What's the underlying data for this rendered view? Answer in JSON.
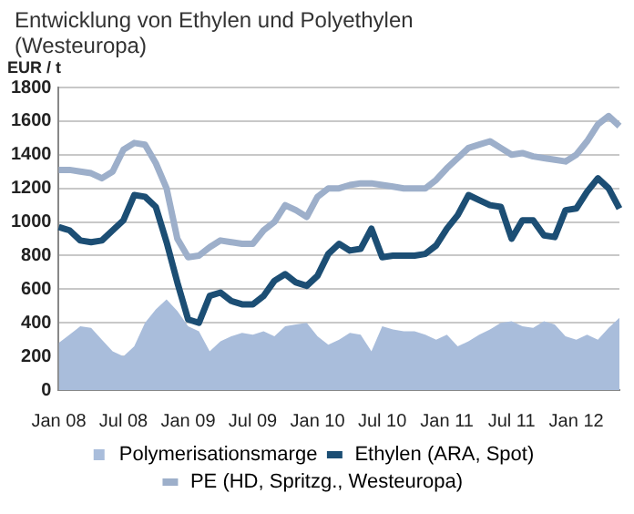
{
  "chart_data": {
    "type": "line",
    "title": "Entwicklung von Ethylen und Polyethylen (Westeuropa)",
    "ylabel": "EUR / t",
    "categories": [
      "Jan 08",
      null,
      null,
      null,
      null,
      null,
      "Jul 08",
      null,
      null,
      null,
      null,
      null,
      "Jan 09",
      null,
      null,
      null,
      null,
      null,
      "Jul 09",
      null,
      null,
      null,
      null,
      null,
      "Jan 10",
      null,
      null,
      null,
      null,
      null,
      "Jul 10",
      null,
      null,
      null,
      null,
      null,
      "Jan 11",
      null,
      null,
      null,
      null,
      null,
      "Jul 11",
      null,
      null,
      null,
      null,
      null,
      "Jan 12",
      null,
      null,
      null,
      null
    ],
    "series": [
      {
        "name": "Polymerisationsmarge",
        "type": "area",
        "color": "#a9bddb",
        "values": [
          280,
          330,
          380,
          370,
          300,
          230,
          200,
          260,
          400,
          480,
          540,
          470,
          380,
          350,
          230,
          290,
          320,
          340,
          330,
          350,
          320,
          380,
          390,
          400,
          320,
          270,
          300,
          340,
          330,
          230,
          380,
          360,
          350,
          350,
          330,
          300,
          330,
          260,
          290,
          330,
          360,
          400,
          410,
          380,
          370,
          410,
          390,
          320,
          300,
          330,
          300,
          370,
          430
        ]
      },
      {
        "name": "Ethylen (ARA, Spot)",
        "color": "#1c4e74",
        "values": [
          970,
          950,
          890,
          880,
          890,
          950,
          1010,
          1160,
          1150,
          1090,
          880,
          640,
          420,
          400,
          560,
          580,
          530,
          510,
          510,
          560,
          650,
          690,
          640,
          620,
          680,
          810,
          870,
          830,
          840,
          960,
          790,
          800,
          800,
          800,
          810,
          860,
          960,
          1040,
          1160,
          1130,
          1100,
          1090,
          900,
          1010,
          1010,
          920,
          910,
          1070,
          1080,
          1180,
          1260,
          1200,
          1080
        ]
      },
      {
        "name": "PE (HD, Spritzg., Westeuropa)",
        "color": "#9dafca",
        "values": [
          1310,
          1310,
          1300,
          1290,
          1260,
          1300,
          1430,
          1470,
          1460,
          1350,
          1200,
          900,
          790,
          800,
          850,
          890,
          880,
          870,
          870,
          950,
          1000,
          1100,
          1070,
          1030,
          1150,
          1200,
          1200,
          1220,
          1230,
          1230,
          1220,
          1210,
          1200,
          1200,
          1200,
          1250,
          1320,
          1380,
          1440,
          1460,
          1480,
          1440,
          1400,
          1410,
          1390,
          1380,
          1370,
          1360,
          1400,
          1480,
          1580,
          1630,
          1570
        ]
      }
    ],
    "ylim": [
      0,
      1800
    ],
    "yticks": [
      0,
      200,
      400,
      600,
      800,
      1000,
      1200,
      1400,
      1600,
      1800
    ],
    "grid": "y",
    "legend": "bottom",
    "marker": "none",
    "line_style": "solid"
  }
}
